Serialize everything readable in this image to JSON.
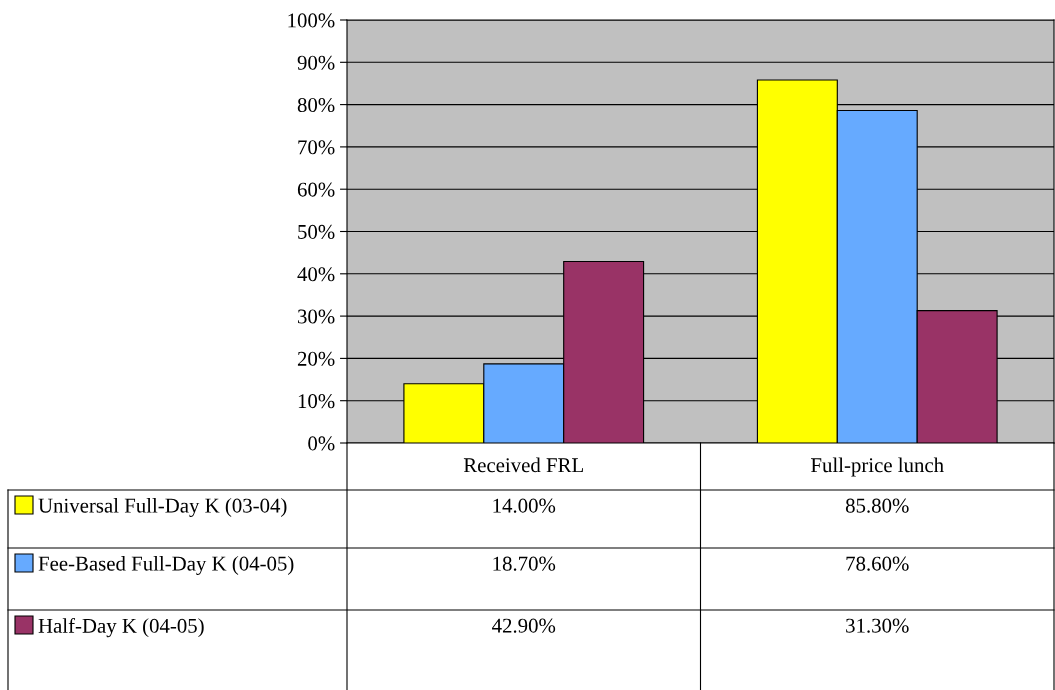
{
  "chart_data": {
    "type": "bar",
    "categories": [
      "Received FRL",
      "Full-price lunch"
    ],
    "series": [
      {
        "name": "Universal Full-Day K (03-04)",
        "color": "#ffff00",
        "values": [
          14.0,
          85.8
        ],
        "value_labels": [
          "14.00%",
          "85.80%"
        ]
      },
      {
        "name": "Fee-Based Full-Day K (04-05)",
        "color": "#66aaff",
        "values": [
          18.7,
          78.6
        ],
        "value_labels": [
          "18.70%",
          "78.60%"
        ]
      },
      {
        "name": "Half-Day K (04-05)",
        "color": "#993366",
        "values": [
          42.9,
          31.3
        ],
        "value_labels": [
          "42.90%",
          "31.30%"
        ]
      }
    ],
    "ylim": [
      0,
      100
    ],
    "yticks": [
      {
        "value": 0,
        "label": "0%"
      },
      {
        "value": 10,
        "label": "10%"
      },
      {
        "value": 20,
        "label": "20%"
      },
      {
        "value": 30,
        "label": "30%"
      },
      {
        "value": 40,
        "label": "40%"
      },
      {
        "value": 50,
        "label": "50%"
      },
      {
        "value": 60,
        "label": "60%"
      },
      {
        "value": 70,
        "label": "70%"
      },
      {
        "value": 80,
        "label": "80%"
      },
      {
        "value": 90,
        "label": "90%"
      },
      {
        "value": 100,
        "label": "100%"
      }
    ],
    "grid": "y",
    "legend": "bottom left"
  }
}
